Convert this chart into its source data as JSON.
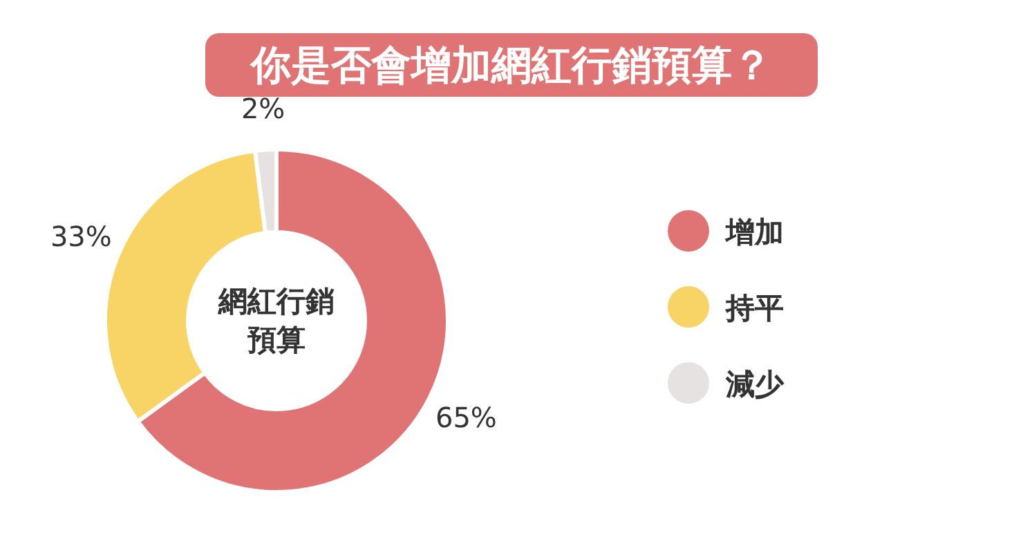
{
  "chart_data": {
    "type": "donut",
    "title": "你是否會增加網紅行銷預算？",
    "categories": [
      "增加",
      "持平",
      "減少"
    ],
    "values": [
      65,
      33,
      2
    ],
    "colors": [
      "#e07474",
      "#f8d366",
      "#e6e2e2"
    ],
    "value_labels": [
      "65%",
      "33%",
      "2%"
    ],
    "annotations": [
      "網紅行銷預算"
    ],
    "legend": "right"
  }
}
